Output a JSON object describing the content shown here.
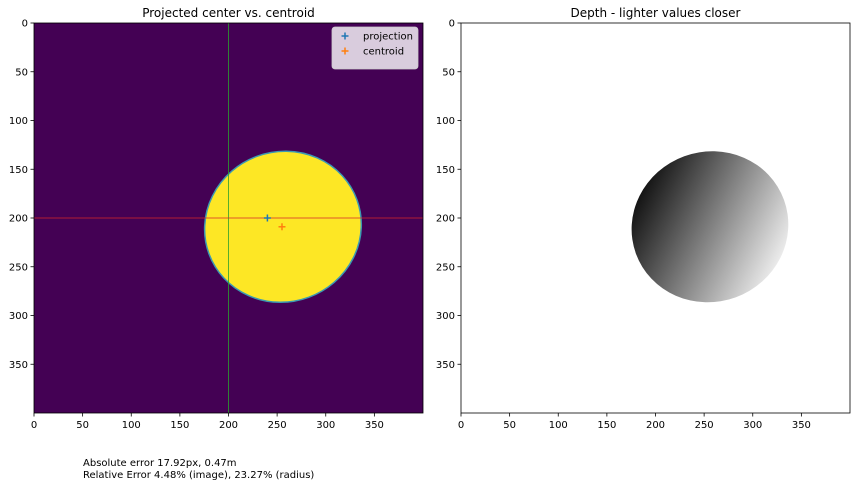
{
  "chart_data": [
    {
      "type": "heatmap",
      "title": "Projected center vs. centroid",
      "xlim": [
        0,
        400
      ],
      "ylim": [
        400,
        0
      ],
      "xticks": [
        0,
        50,
        100,
        150,
        200,
        250,
        300,
        350
      ],
      "yticks": [
        0,
        50,
        100,
        150,
        200,
        250,
        300,
        350
      ],
      "background_color": "#440154",
      "mask_color": "#fde725",
      "mask_outline_color": "#3b9ab2",
      "mask_shape": {
        "type": "ellipse",
        "cx": 256,
        "cy": 209,
        "rx": 81,
        "ry": 77,
        "rotation_deg": -20
      },
      "crosshair": {
        "x": 200,
        "y": 200,
        "vertical_color": "#2ca02c",
        "horizontal_color": "#d62728"
      },
      "series": [
        {
          "name": "projection",
          "x": [
            240
          ],
          "y": [
            200
          ],
          "marker": "+",
          "color": "#1f77b4"
        },
        {
          "name": "centroid",
          "x": [
            255
          ],
          "y": [
            209
          ],
          "marker": "+",
          "color": "#ff7f0e"
        }
      ],
      "legend": "top-right",
      "grid": false
    },
    {
      "type": "heatmap",
      "title": "Depth - lighter values closer",
      "xlim": [
        0,
        400
      ],
      "ylim": [
        400,
        0
      ],
      "xticks": [
        0,
        50,
        100,
        150,
        200,
        250,
        300,
        350
      ],
      "yticks": [
        0,
        50,
        100,
        150,
        200,
        250,
        300,
        350
      ],
      "background_color": "#ffffff",
      "colormap": "gray",
      "gradient_from_color": "#000000",
      "gradient_to_color": "#ffffff",
      "gradient_direction": "upper-left to lower-right",
      "mask_shape": {
        "type": "ellipse",
        "cx": 256,
        "cy": 209,
        "rx": 81,
        "ry": 77,
        "rotation_deg": -20
      },
      "grid": false
    }
  ],
  "notes": {
    "line1": "Absolute error 17.92px, 0.47m",
    "line2": "Relative Error 4.48% (image), 23.27% (radius)"
  }
}
